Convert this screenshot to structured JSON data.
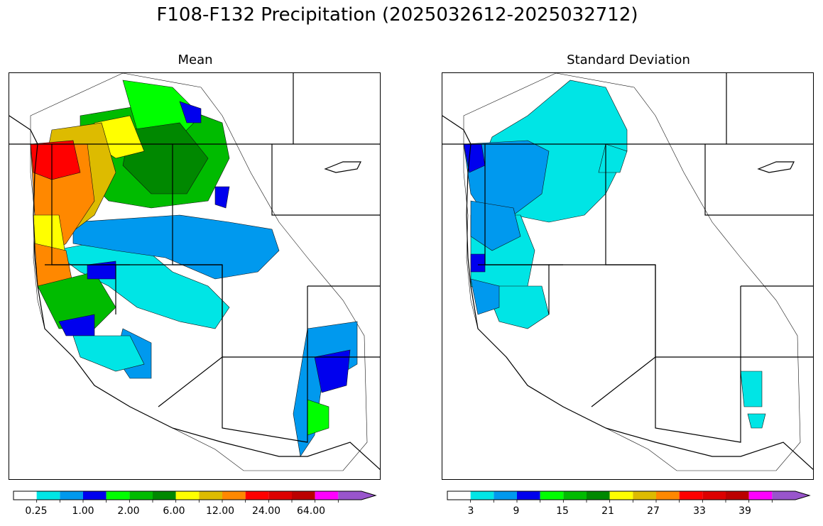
{
  "figure": {
    "title": "F108-F132 Precipitation (2025032612-2025032712)"
  },
  "panels": [
    {
      "title": "Mean",
      "colorbar": {
        "tick_labels": [
          "0.25",
          "1.00",
          "2.00",
          "6.00",
          "12.00",
          "24.00",
          "64.00"
        ],
        "colors": [
          "#ffffff",
          "#00e5e5",
          "#0099ee",
          "#0000ee",
          "#00ff00",
          "#00bb00",
          "#008800",
          "#ffff00",
          "#ddbb00",
          "#ff8800",
          "#ff0000",
          "#dd0000",
          "#bb0000",
          "#ff00ff",
          "#9955cc"
        ],
        "extend": "max"
      }
    },
    {
      "title": "Standard Deviation",
      "colorbar": {
        "tick_labels": [
          "3",
          "9",
          "15",
          "21",
          "27",
          "33",
          "39"
        ],
        "colors": [
          "#ffffff",
          "#00e5e5",
          "#0099ee",
          "#0000ee",
          "#00ff00",
          "#00bb00",
          "#008800",
          "#ffff00",
          "#ddbb00",
          "#ff8800",
          "#ff0000",
          "#dd0000",
          "#bb0000",
          "#ff00ff",
          "#9955cc"
        ],
        "extend": "max"
      }
    }
  ]
}
